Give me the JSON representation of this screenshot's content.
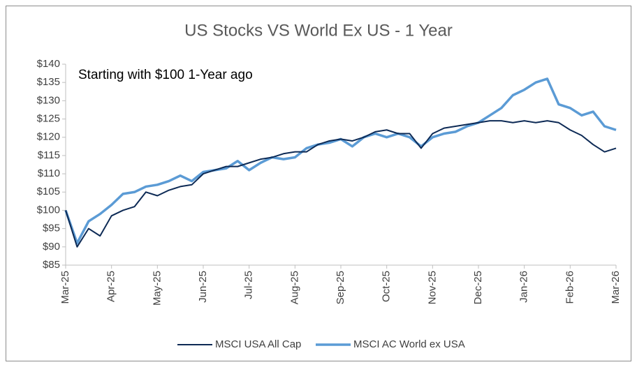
{
  "chart_data": {
    "type": "line",
    "title": "US Stocks VS World Ex US - 1 Year",
    "annotation": "Starting with $100 1-Year ago",
    "x": [
      0,
      0.25,
      0.5,
      0.75,
      1,
      1.25,
      1.5,
      1.75,
      2,
      2.25,
      2.5,
      2.75,
      3,
      3.25,
      3.5,
      3.75,
      4,
      4.25,
      4.5,
      4.75,
      5,
      5.25,
      5.5,
      5.75,
      6,
      6.25,
      6.5,
      6.75,
      7,
      7.25,
      7.5,
      7.75,
      8,
      8.25,
      8.5,
      8.75,
      9,
      9.25,
      9.5,
      9.75,
      10,
      10.25,
      10.5,
      10.75,
      11,
      11.25,
      11.5,
      11.75,
      12
    ],
    "series": [
      {
        "name": "MSCI USA All Cap",
        "color": "#0d2a55",
        "values": [
          100,
          90,
          95,
          93,
          98.5,
          100,
          101,
          105,
          104,
          105.5,
          106.5,
          107,
          110,
          111,
          112,
          112,
          113,
          114,
          114.5,
          115.5,
          116,
          116,
          118,
          119,
          119.5,
          119,
          120,
          121.5,
          122,
          121,
          121,
          117,
          121,
          122.5,
          123,
          123.5,
          124,
          124.5,
          124.5,
          124,
          124.5,
          124,
          124.5,
          124,
          122,
          120.5,
          118,
          116,
          117
        ]
      },
      {
        "name": "MSCI AC World ex USA",
        "color": "#5b9bd5",
        "values": [
          100,
          91,
          97,
          99,
          101.5,
          104.5,
          105,
          106.5,
          107,
          108,
          109.5,
          108,
          110.5,
          111,
          111.5,
          113.5,
          111,
          113,
          114.5,
          114,
          114.5,
          117,
          118,
          118.5,
          119.5,
          117.5,
          120,
          121,
          120,
          121,
          120,
          117.5,
          120,
          121,
          121.5,
          123,
          124,
          126,
          128,
          131.5,
          133,
          135,
          136,
          129,
          128,
          126,
          127,
          123,
          122
        ]
      }
    ],
    "xlim": [
      0,
      12
    ],
    "xticks": [
      {
        "value": 0,
        "label": "Mar-25"
      },
      {
        "value": 1,
        "label": "Apr-25"
      },
      {
        "value": 2,
        "label": "May-25"
      },
      {
        "value": 3,
        "label": "Jun-25"
      },
      {
        "value": 4,
        "label": "Jul-25"
      },
      {
        "value": 5,
        "label": "Aug-25"
      },
      {
        "value": 6,
        "label": "Sep-25"
      },
      {
        "value": 7,
        "label": "Oct-25"
      },
      {
        "value": 8,
        "label": "Nov-25"
      },
      {
        "value": 9,
        "label": "Dec-25"
      },
      {
        "value": 10,
        "label": "Jan-26"
      },
      {
        "value": 11,
        "label": "Feb-26"
      },
      {
        "value": 12,
        "label": "Mar-26"
      }
    ],
    "ylim": [
      85,
      140
    ],
    "yticks": [
      {
        "value": 85,
        "label": "$85"
      },
      {
        "value": 90,
        "label": "$90"
      },
      {
        "value": 95,
        "label": "$95"
      },
      {
        "value": 100,
        "label": "$100"
      },
      {
        "value": 105,
        "label": "$105"
      },
      {
        "value": 110,
        "label": "$110"
      },
      {
        "value": 115,
        "label": "$115"
      },
      {
        "value": 120,
        "label": "$120"
      },
      {
        "value": 125,
        "label": "$125"
      },
      {
        "value": 130,
        "label": "$130"
      },
      {
        "value": 135,
        "label": "$135"
      },
      {
        "value": 140,
        "label": "$140"
      }
    ],
    "legend": "bottom"
  }
}
